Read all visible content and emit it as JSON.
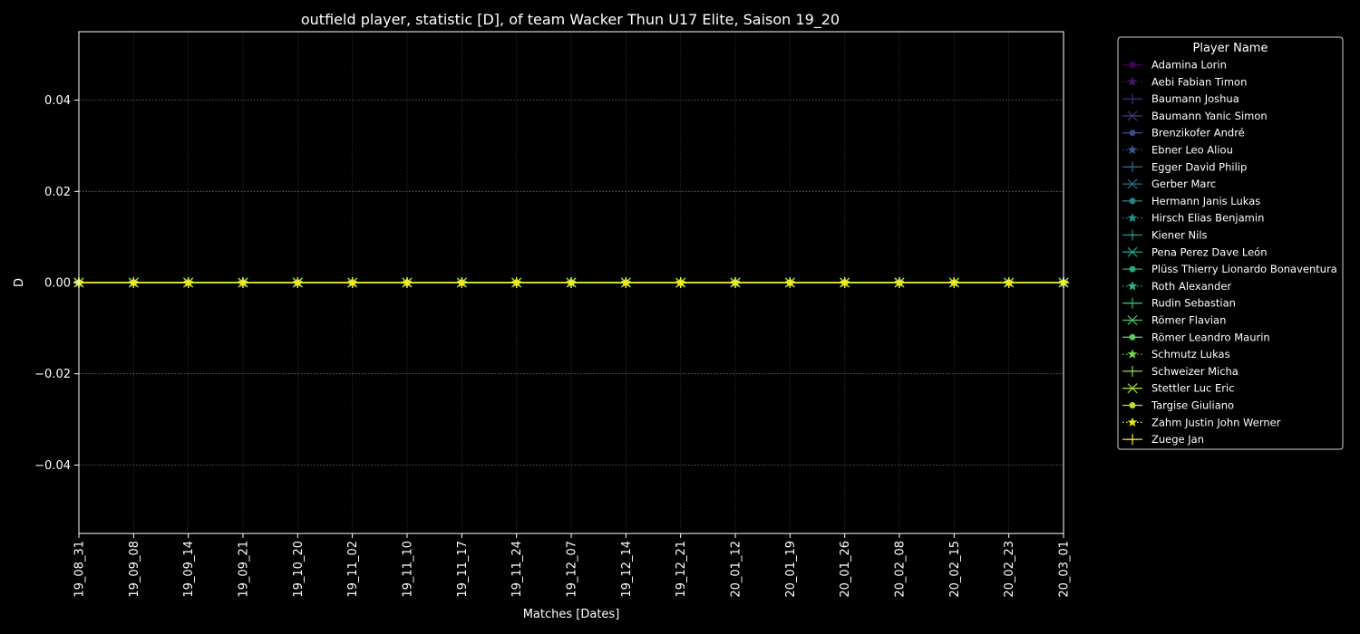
{
  "chart_data": {
    "type": "line",
    "title": "outfield player, statistic [D], of team Wacker Thun U17 Elite, Saison 19_20",
    "xlabel": "Matches [Dates]",
    "ylabel": "D",
    "ylim": [
      -0.055,
      0.055
    ],
    "yticks": [
      -0.04,
      -0.02,
      0.0,
      0.02,
      0.04
    ],
    "ytick_labels": [
      "−0.04",
      "−0.02",
      "0.00",
      "0.02",
      "0.04"
    ],
    "grid": true,
    "legend_title": "Player Name",
    "legend_position": "outside-right",
    "categories": [
      "19_08_31",
      "19_09_08",
      "19_09_14",
      "19_09_21",
      "19_10_20",
      "19_11_02",
      "19_11_10",
      "19_11_17",
      "19_11_24",
      "19_12_07",
      "19_12_14",
      "19_12_21",
      "20_01_12",
      "20_01_19",
      "20_01_26",
      "20_02_08",
      "20_02_15",
      "20_02_23",
      "20_03_01"
    ],
    "series": [
      {
        "name": "Adamina Lorin",
        "color": "#440154",
        "marker": "circle",
        "dash": "solid",
        "values": [
          0,
          0,
          0,
          0,
          0,
          0,
          0,
          0,
          0,
          0,
          0,
          0,
          0,
          0,
          0,
          0,
          0,
          0,
          0
        ]
      },
      {
        "name": "Aebi Fabian Timon",
        "color": "#481668",
        "marker": "star",
        "dash": "dotted",
        "values": [
          0,
          0,
          0,
          0,
          0,
          0,
          0,
          0,
          0,
          0,
          0,
          0,
          0,
          0,
          0,
          0,
          0,
          0,
          0
        ]
      },
      {
        "name": "Baumann Joshua",
        "color": "#482878",
        "marker": "plus",
        "dash": "solid",
        "values": [
          0,
          0,
          0,
          0,
          0,
          0,
          0,
          0,
          0,
          0,
          0,
          0,
          0,
          0,
          0,
          0,
          0,
          0,
          0
        ]
      },
      {
        "name": "Baumann Yanic Simon",
        "color": "#453781",
        "marker": "x",
        "dash": "solid",
        "values": [
          0,
          0,
          0,
          0,
          0,
          0,
          0,
          0,
          0,
          0,
          0,
          0,
          0,
          0,
          0,
          0,
          0,
          0,
          0
        ]
      },
      {
        "name": "Brenzikofer André",
        "color": "#3e4989",
        "marker": "circle",
        "dash": "solid",
        "values": [
          0,
          0,
          0,
          0,
          0,
          0,
          0,
          0,
          0,
          0,
          0,
          0,
          0,
          0,
          0,
          0,
          0,
          0,
          0
        ]
      },
      {
        "name": "Ebner Leo Aliou",
        "color": "#38598c",
        "marker": "star",
        "dash": "dotted",
        "values": [
          0,
          0,
          0,
          0,
          0,
          0,
          0,
          0,
          0,
          0,
          0,
          0,
          0,
          0,
          0,
          0,
          0,
          0,
          0
        ]
      },
      {
        "name": "Egger David Philip",
        "color": "#31688e",
        "marker": "plus",
        "dash": "solid",
        "values": [
          0,
          0,
          0,
          0,
          0,
          0,
          0,
          0,
          0,
          0,
          0,
          0,
          0,
          0,
          0,
          0,
          0,
          0,
          0
        ]
      },
      {
        "name": "Gerber Marc",
        "color": "#2c728e",
        "marker": "x",
        "dash": "solid",
        "values": [
          0,
          0,
          0,
          0,
          0,
          0,
          0,
          0,
          0,
          0,
          0,
          0,
          0,
          0,
          0,
          0,
          0,
          0,
          0
        ]
      },
      {
        "name": "Hermann Janis Lukas",
        "color": "#26828e",
        "marker": "circle",
        "dash": "solid",
        "values": [
          0,
          0,
          0,
          0,
          0,
          0,
          0,
          0,
          0,
          0,
          0,
          0,
          0,
          0,
          0,
          0,
          0,
          0,
          0
        ]
      },
      {
        "name": "Hirsch Elias Benjamin",
        "color": "#228d8d",
        "marker": "star",
        "dash": "dotted",
        "values": [
          0,
          0,
          0,
          0,
          0,
          0,
          0,
          0,
          0,
          0,
          0,
          0,
          0,
          0,
          0,
          0,
          0,
          0,
          0
        ]
      },
      {
        "name": "Kiener Nils",
        "color": "#1f9a8a",
        "marker": "plus",
        "dash": "solid",
        "values": [
          0,
          0,
          0,
          0,
          0,
          0,
          0,
          0,
          0,
          0,
          0,
          0,
          0,
          0,
          0,
          0,
          0,
          0,
          0
        ]
      },
      {
        "name": "Pena Perez Dave León",
        "color": "#1fa088",
        "marker": "x",
        "dash": "solid",
        "values": [
          0,
          0,
          0,
          0,
          0,
          0,
          0,
          0,
          0,
          0,
          0,
          0,
          0,
          0,
          0,
          0,
          0,
          0,
          0
        ]
      },
      {
        "name": "Plüss Thierry Lionardo Bonaventura",
        "color": "#22a884",
        "marker": "circle",
        "dash": "solid",
        "values": [
          0,
          0,
          0,
          0,
          0,
          0,
          0,
          0,
          0,
          0,
          0,
          0,
          0,
          0,
          0,
          0,
          0,
          0,
          0
        ]
      },
      {
        "name": "Roth Alexander",
        "color": "#2fb47c",
        "marker": "star",
        "dash": "dotted",
        "values": [
          0,
          0,
          0,
          0,
          0,
          0,
          0,
          0,
          0,
          0,
          0,
          0,
          0,
          0,
          0,
          0,
          0,
          0,
          0
        ]
      },
      {
        "name": "Rudin Sebastian",
        "color": "#3bbb75",
        "marker": "plus",
        "dash": "solid",
        "values": [
          0,
          0,
          0,
          0,
          0,
          0,
          0,
          0,
          0,
          0,
          0,
          0,
          0,
          0,
          0,
          0,
          0,
          0,
          0
        ]
      },
      {
        "name": "Römer Flavian",
        "color": "#4ec36b",
        "marker": "x",
        "dash": "solid",
        "values": [
          0,
          0,
          0,
          0,
          0,
          0,
          0,
          0,
          0,
          0,
          0,
          0,
          0,
          0,
          0,
          0,
          0,
          0,
          0
        ]
      },
      {
        "name": "Römer Leandro Maurin",
        "color": "#5ec962",
        "marker": "circle",
        "dash": "solid",
        "values": [
          0,
          0,
          0,
          0,
          0,
          0,
          0,
          0,
          0,
          0,
          0,
          0,
          0,
          0,
          0,
          0,
          0,
          0,
          0
        ]
      },
      {
        "name": "Schmutz Lukas",
        "color": "#7ad151",
        "marker": "star",
        "dash": "dotted",
        "values": [
          0,
          0,
          0,
          0,
          0,
          0,
          0,
          0,
          0,
          0,
          0,
          0,
          0,
          0,
          0,
          0,
          0,
          0,
          0
        ]
      },
      {
        "name": "Schweizer Micha",
        "color": "#8fd744",
        "marker": "plus",
        "dash": "solid",
        "values": [
          0,
          0,
          0,
          0,
          0,
          0,
          0,
          0,
          0,
          0,
          0,
          0,
          0,
          0,
          0,
          0,
          0,
          0,
          0
        ]
      },
      {
        "name": "Stettler Luc Eric",
        "color": "#a5db36",
        "marker": "x",
        "dash": "solid",
        "values": [
          0,
          0,
          0,
          0,
          0,
          0,
          0,
          0,
          0,
          0,
          0,
          0,
          0,
          0,
          0,
          0,
          0,
          0,
          0
        ]
      },
      {
        "name": "Targise Giuliano",
        "color": "#c2df23",
        "marker": "circle",
        "dash": "solid",
        "values": [
          0,
          0,
          0,
          0,
          0,
          0,
          0,
          0,
          0,
          0,
          0,
          0,
          0,
          0,
          0,
          0,
          0,
          0,
          0
        ]
      },
      {
        "name": "Zahm Justin John Werner",
        "color": "#e5e419",
        "marker": "star",
        "dash": "dotted",
        "values": [
          0,
          0,
          0,
          0,
          0,
          0,
          0,
          0,
          0,
          0,
          0,
          0,
          0,
          0,
          0,
          0,
          0,
          0,
          0
        ]
      },
      {
        "name": "Zuege Jan",
        "color": "#fde725",
        "marker": "plus",
        "dash": "solid",
        "values": [
          0,
          0,
          0,
          0,
          0,
          0,
          0,
          0,
          0,
          0,
          0,
          0,
          0,
          0,
          0,
          0,
          0,
          0,
          0
        ]
      }
    ]
  }
}
